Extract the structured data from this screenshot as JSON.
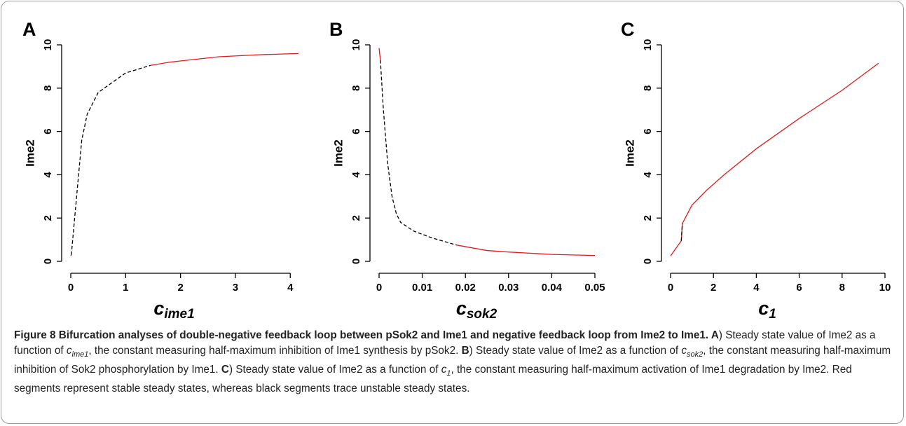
{
  "chart_data": [
    {
      "type": "line",
      "panel": "A",
      "ylabel": "Ime2",
      "xlabel": "c",
      "xlabel_sub": "ime1",
      "x": [
        0,
        0.01,
        0.2,
        0.3,
        0.5,
        1.0,
        1.45,
        1.8,
        2.7,
        3.5,
        4.15
      ],
      "series": [
        {
          "name": "stable",
          "color": "#e31a1c",
          "dashed": false,
          "values": [
            0.25,
            0.3,
            null,
            null,
            null,
            null,
            9.05,
            9.2,
            9.45,
            9.55,
            9.6
          ]
        },
        {
          "name": "unstable",
          "color": "#000000",
          "dashed": true,
          "values": [
            null,
            0.3,
            5.6,
            6.8,
            7.8,
            8.7,
            9.05,
            null,
            null,
            null,
            null
          ]
        }
      ],
      "xlim": [
        0,
        4.15
      ],
      "xticks": [
        0,
        1,
        2,
        3,
        4
      ],
      "ylim": [
        0,
        10
      ],
      "yticks": [
        0,
        2,
        4,
        6,
        8,
        10
      ]
    },
    {
      "type": "line",
      "panel": "B",
      "ylabel": "Ime2",
      "xlabel": "c",
      "xlabel_sub": "sok2",
      "x": [
        0,
        0.0003,
        0.001,
        0.002,
        0.003,
        0.004,
        0.005,
        0.008,
        0.012,
        0.018,
        0.025,
        0.03,
        0.04,
        0.05
      ],
      "series": [
        {
          "name": "stable",
          "color": "#e31a1c",
          "dashed": false,
          "values": [
            9.85,
            9.3,
            null,
            null,
            null,
            null,
            null,
            null,
            null,
            0.75,
            0.5,
            0.43,
            0.32,
            0.27
          ]
        },
        {
          "name": "unstable",
          "color": "#000000",
          "dashed": true,
          "values": [
            null,
            9.3,
            7,
            4.5,
            3,
            2.2,
            1.8,
            1.4,
            1.1,
            0.75,
            null,
            null,
            null,
            null
          ]
        }
      ],
      "xlim": [
        0,
        0.05
      ],
      "xticks": [
        0,
        0.01,
        0.02,
        0.03,
        0.04,
        0.05
      ],
      "ylim": [
        0,
        10
      ],
      "yticks": [
        0,
        2,
        4,
        6,
        8,
        10
      ]
    },
    {
      "type": "line",
      "panel": "C",
      "ylabel": "Ime2",
      "xlabel": "c",
      "xlabel_sub": "1",
      "x": [
        0,
        0.5,
        0.55,
        1,
        1.7,
        2.5,
        4,
        6,
        8,
        9.7
      ],
      "series": [
        {
          "name": "stable",
          "color": "#e31a1c",
          "dashed": false,
          "values": [
            0.25,
            0.95,
            1.75,
            2.6,
            3.3,
            4,
            5.2,
            6.6,
            7.9,
            9.15
          ]
        },
        {
          "name": "unstable",
          "color": "#000000",
          "dashed": true,
          "values": [
            null,
            0.95,
            1.75,
            null,
            null,
            null,
            null,
            null,
            null,
            null
          ]
        }
      ],
      "xlim": [
        0,
        10
      ],
      "xticks": [
        0,
        2,
        4,
        6,
        8,
        10
      ],
      "ylim": [
        0,
        10
      ],
      "yticks": [
        0,
        2,
        4,
        6,
        8,
        10
      ]
    }
  ],
  "caption": [
    {
      "style": "bold",
      "text": "Figure 8 Bifurcation analyses of double-negative feedback loop between pSok2 and Ime1 and negative feedback loop from Ime2 to Ime1. A"
    },
    {
      "style": "normal",
      "text": ") Steady state value of Ime2 as a function of "
    },
    {
      "style": "italic",
      "text": "c"
    },
    {
      "style": "sub",
      "text": "ime1"
    },
    {
      "style": "normal",
      "text": ", the constant measuring half-maximum inhibition of Ime1 synthesis by pSok2. "
    },
    {
      "style": "bold",
      "text": "B"
    },
    {
      "style": "normal",
      "text": ") Steady state value of Ime2 as a function of "
    },
    {
      "style": "italic",
      "text": "c"
    },
    {
      "style": "sub",
      "text": "sok2"
    },
    {
      "style": "normal",
      "text": ", the constant measuring half-maximum inhibition of Sok2 phosphorylation by Ime1. "
    },
    {
      "style": "bold",
      "text": "C"
    },
    {
      "style": "normal",
      "text": ") Steady state value of Ime2 as a function of "
    },
    {
      "style": "italic",
      "text": "c"
    },
    {
      "style": "sub",
      "text": "1"
    },
    {
      "style": "normal",
      "text": ", the constant measuring half-maximum activation of Ime1 degradation by Ime2. Red segments represent stable steady states, whereas black segments trace unstable steady states."
    }
  ]
}
